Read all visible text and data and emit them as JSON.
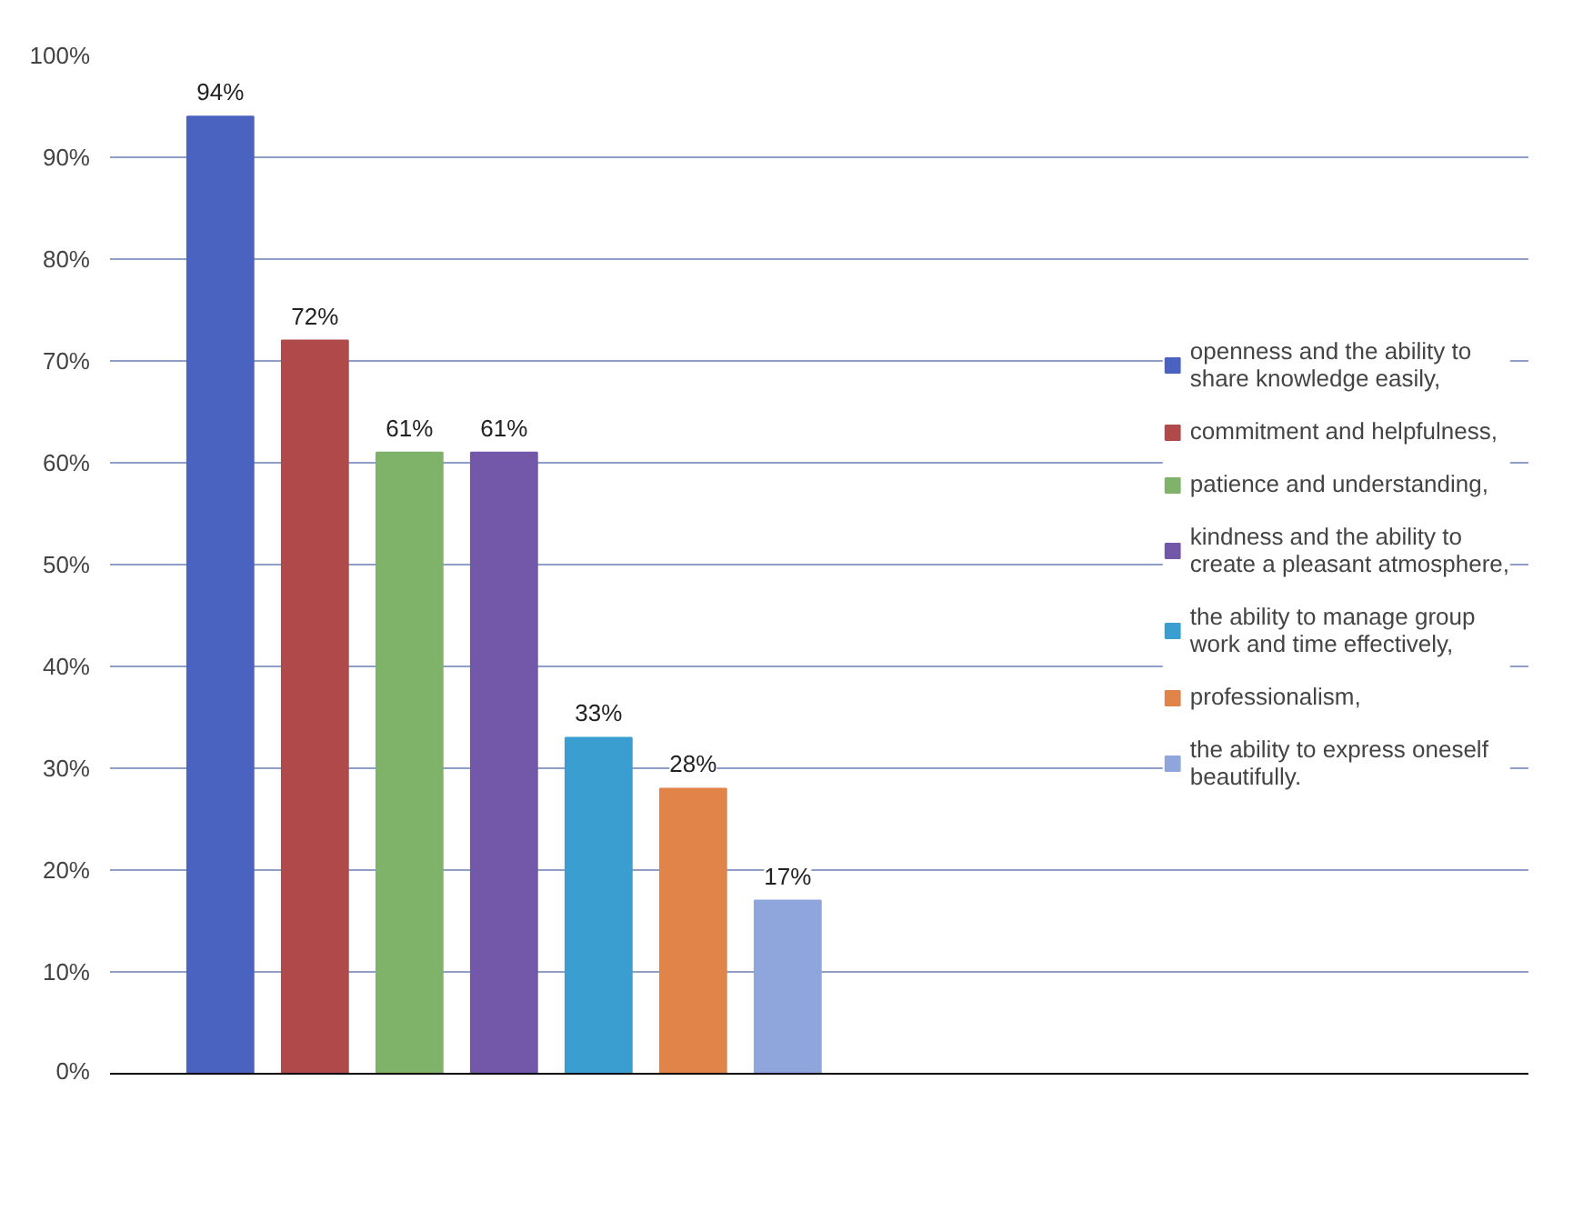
{
  "chart_data": {
    "type": "bar",
    "categories": [
      null
    ],
    "series": [
      {
        "name": "openness and the ability to share knowledge easily,",
        "color": "#4a63c0",
        "values": [
          94
        ],
        "value_labels": [
          "94%"
        ]
      },
      {
        "name": "commitment and helpfulness,",
        "color": "#b04a4a",
        "values": [
          72
        ],
        "value_labels": [
          "72%"
        ]
      },
      {
        "name": "patience and understanding,",
        "color": "#7fb36a",
        "values": [
          61
        ],
        "value_labels": [
          "61%"
        ]
      },
      {
        "name": "kindness and the ability to create a pleasant atmosphere,",
        "color": "#7357a8",
        "values": [
          61
        ],
        "value_labels": [
          "61%"
        ]
      },
      {
        "name": "the ability to manage group work and time effectively,",
        "color": "#3a9fd0",
        "values": [
          33
        ],
        "value_labels": [
          "33%"
        ]
      },
      {
        "name": "professionalism,",
        "color": "#e0844a",
        "values": [
          28
        ],
        "value_labels": [
          "28%"
        ]
      },
      {
        "name": "the ability to express oneself beautifully.",
        "color": "#8fa6dc",
        "values": [
          17
        ],
        "value_labels": [
          "17%"
        ]
      }
    ],
    "ylim": [
      0,
      100
    ],
    "yticks": [
      {
        "value": 0,
        "label": "0%"
      },
      {
        "value": 10,
        "label": "10%"
      },
      {
        "value": 20,
        "label": "20%"
      },
      {
        "value": 30,
        "label": "30%"
      },
      {
        "value": 40,
        "label": "40%"
      },
      {
        "value": 50,
        "label": "50%"
      },
      {
        "value": 60,
        "label": "60%"
      },
      {
        "value": 70,
        "label": "70%"
      },
      {
        "value": 80,
        "label": "80%"
      },
      {
        "value": 90,
        "label": "90%"
      },
      {
        "value": 100,
        "label": "100%"
      }
    ],
    "grid": "y",
    "legend": "right"
  }
}
